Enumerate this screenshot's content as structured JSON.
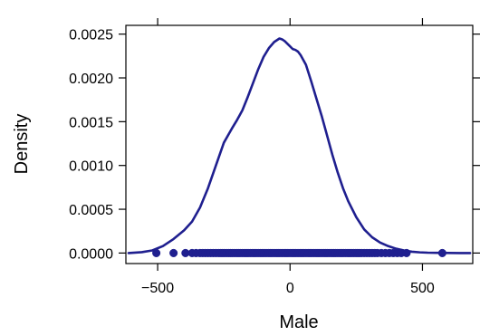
{
  "chart_data": {
    "type": "line",
    "title": "",
    "xlabel": "Male",
    "ylabel": "Density",
    "xlim": [
      -620,
      690
    ],
    "ylim": [
      -0.00012,
      0.0026
    ],
    "x_ticks": [
      -500,
      0,
      500
    ],
    "x_tick_labels": [
      "−500",
      "0",
      "500"
    ],
    "y_ticks": [
      0.0,
      0.0005,
      0.001,
      0.0015,
      0.002,
      0.0025
    ],
    "y_tick_labels": [
      "0.0000",
      "0.0005",
      "0.0010",
      "0.0015",
      "0.0020",
      "0.0025"
    ],
    "grid": false,
    "line_color": "#1f1f8f",
    "series": [
      {
        "kind": "density",
        "x": [
          -610,
          -560,
          -520,
          -480,
          -440,
          -400,
          -370,
          -340,
          -310,
          -280,
          -250,
          -220,
          -200,
          -180,
          -160,
          -140,
          -120,
          -100,
          -80,
          -60,
          -40,
          -30,
          -20,
          -10,
          0,
          10,
          20,
          30,
          40,
          60,
          80,
          100,
          120,
          140,
          160,
          180,
          200,
          220,
          250,
          280,
          310,
          340,
          370,
          400,
          430,
          460,
          490,
          520,
          560,
          600,
          640,
          680
        ],
        "y": [
          0.0,
          1e-05,
          3e-05,
          8e-05,
          0.00016,
          0.00026,
          0.00036,
          0.00052,
          0.00074,
          0.001,
          0.00126,
          0.00142,
          0.00152,
          0.00163,
          0.00178,
          0.00194,
          0.0021,
          0.00224,
          0.00234,
          0.00241,
          0.00245,
          0.00244,
          0.00242,
          0.00239,
          0.00236,
          0.00233,
          0.00232,
          0.0023,
          0.00226,
          0.00215,
          0.00196,
          0.00176,
          0.00156,
          0.00134,
          0.00112,
          0.00092,
          0.00074,
          0.00059,
          0.00041,
          0.00027,
          0.00018,
          0.00012,
          8e-05,
          5e-05,
          3e-05,
          1.5e-05,
          8e-06,
          4e-06,
          2e-06,
          1e-06,
          0.0,
          0.0
        ]
      },
      {
        "kind": "rug_points",
        "y": 0.0,
        "x": [
          -505,
          -440,
          -395,
          -370,
          -355,
          -340,
          -330,
          -320,
          -310,
          -300,
          -290,
          -280,
          -270,
          -262,
          -255,
          -248,
          -240,
          -232,
          -225,
          -218,
          -210,
          -202,
          -195,
          -188,
          -180,
          -172,
          -165,
          -158,
          -150,
          -142,
          -135,
          -128,
          -120,
          -112,
          -105,
          -98,
          -90,
          -82,
          -75,
          -68,
          -60,
          -52,
          -45,
          -38,
          -30,
          -22,
          -15,
          -8,
          0,
          8,
          15,
          22,
          30,
          38,
          45,
          52,
          60,
          68,
          75,
          82,
          90,
          98,
          105,
          112,
          120,
          128,
          135,
          142,
          150,
          158,
          165,
          172,
          180,
          188,
          195,
          202,
          210,
          218,
          225,
          232,
          240,
          248,
          255,
          262,
          270,
          280,
          290,
          300,
          310,
          320,
          330,
          345,
          360,
          375,
          390,
          405,
          420,
          440,
          575
        ]
      }
    ]
  }
}
